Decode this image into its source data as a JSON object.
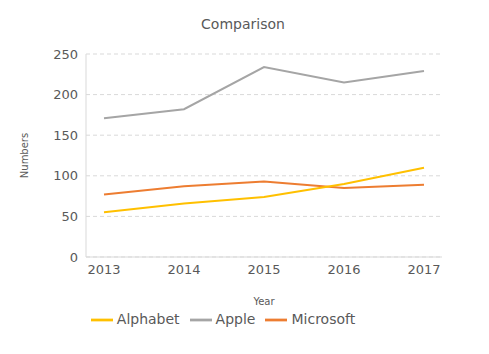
{
  "chart_data": {
    "type": "line",
    "title": "Comparison",
    "x_label": "Year",
    "y_label": "Numbers",
    "categories": [
      "2013",
      "2014",
      "2015",
      "2016",
      "2017"
    ],
    "series": [
      {
        "name": "Microsoft",
        "color": "#ED7D31",
        "values": [
          77,
          87,
          93,
          85,
          89
        ]
      },
      {
        "name": "Apple",
        "color": "#A5A5A5",
        "values": [
          171,
          182,
          234,
          215,
          229
        ]
      },
      {
        "name": "Alphabet",
        "color": "#FFC000",
        "values": [
          55,
          66,
          74,
          90,
          110
        ]
      }
    ],
    "ylim": [
      0,
      250
    ],
    "yticks": [
      0,
      50,
      100,
      150,
      200,
      250
    ],
    "grid": true,
    "legend": "bottom"
  }
}
